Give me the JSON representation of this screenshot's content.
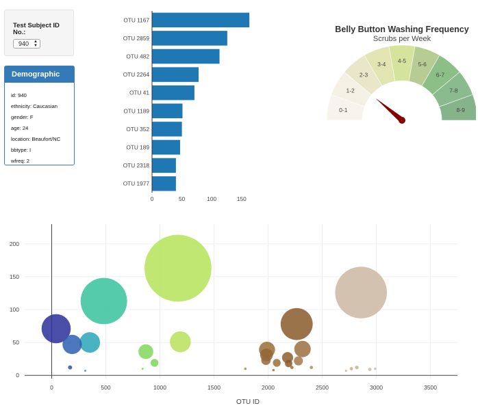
{
  "selector": {
    "label": "Test Subject ID No.:",
    "value": "940"
  },
  "demographics": {
    "title": "Demographic Info",
    "rows": [
      "id: 940",
      "ethnicity: Caucasian",
      "gender: F",
      "age: 24",
      "location: Beaufort/NC",
      "bbtype: I",
      "wfreq: 2"
    ]
  },
  "gauge": {
    "title": "Belly Button Washing Frequency",
    "subtitle": "Scrubs per Week",
    "segments": [
      "0-1",
      "1-2",
      "2-3",
      "3-4",
      "4-5",
      "5-6",
      "6-7",
      "7-8",
      "8-9"
    ],
    "colors": [
      "#f8f3ec",
      "#f4f1e4",
      "#e9e6c9",
      "#e2e4b1",
      "#d5e49d",
      "#b7cc92",
      "#8cbf88",
      "#8abb8f",
      "#85b48a"
    ],
    "value": 2,
    "needle_color": "#850000"
  },
  "chart_data": [
    {
      "type": "bar",
      "orientation": "horizontal",
      "categories": [
        "OTU 1167",
        "OTU 2859",
        "OTU 482",
        "OTU 2264",
        "OTU 41",
        "OTU 1189",
        "OTU 352",
        "OTU 189",
        "OTU 2318",
        "OTU 1977"
      ],
      "values": [
        163,
        126,
        113,
        78,
        71,
        51,
        50,
        47,
        40,
        40
      ],
      "xticks": [
        0,
        50,
        100,
        150
      ],
      "xlim": [
        0,
        172
      ],
      "color": "#1f77b4"
    },
    {
      "type": "scatter",
      "xlabel": "OTU ID",
      "xlim": [
        -250,
        3750
      ],
      "ylim": [
        -5,
        230
      ],
      "xticks": [
        0,
        500,
        1000,
        1500,
        2000,
        2500,
        3000,
        3500
      ],
      "yticks": [
        0,
        50,
        100,
        150,
        200
      ],
      "grid": true,
      "points": [
        {
          "x": 41,
          "y": 71,
          "size": 71,
          "color": "#2b2f9a"
        },
        {
          "x": 189,
          "y": 47,
          "size": 47,
          "color": "#2d5fb0"
        },
        {
          "x": 352,
          "y": 50,
          "size": 50,
          "color": "#2aa6b9"
        },
        {
          "x": 482,
          "y": 113,
          "size": 113,
          "color": "#37c29c"
        },
        {
          "x": 1167,
          "y": 163,
          "size": 163,
          "color": "#b6e35a"
        },
        {
          "x": 1189,
          "y": 51,
          "size": 51,
          "color": "#b9e05c"
        },
        {
          "x": 870,
          "y": 36,
          "size": 36,
          "color": "#7fd85a"
        },
        {
          "x": 950,
          "y": 19,
          "size": 19,
          "color": "#7cd55a"
        },
        {
          "x": 170,
          "y": 12,
          "size": 10,
          "color": "#2b56a8"
        },
        {
          "x": 310,
          "y": 7,
          "size": 5,
          "color": "#2a9fbf"
        },
        {
          "x": 840,
          "y": 10,
          "size": 5,
          "color": "#77d45a"
        },
        {
          "x": 1990,
          "y": 39,
          "size": 39,
          "color": "#9a6d36"
        },
        {
          "x": 1985,
          "y": 31,
          "size": 31,
          "color": "#8f6636"
        },
        {
          "x": 1980,
          "y": 23,
          "size": 23,
          "color": "#936838"
        },
        {
          "x": 2080,
          "y": 19,
          "size": 19,
          "color": "#96703d"
        },
        {
          "x": 2180,
          "y": 27,
          "size": 27,
          "color": "#8c6030"
        },
        {
          "x": 2190,
          "y": 18,
          "size": 18,
          "color": "#8a5c30"
        },
        {
          "x": 2264,
          "y": 78,
          "size": 78,
          "color": "#8a5a2c"
        },
        {
          "x": 2318,
          "y": 40,
          "size": 40,
          "color": "#9b6f40"
        },
        {
          "x": 2280,
          "y": 22,
          "size": 22,
          "color": "#a5784a"
        },
        {
          "x": 2220,
          "y": 12,
          "size": 8,
          "color": "#9a6e3c"
        },
        {
          "x": 2400,
          "y": 12,
          "size": 8,
          "color": "#b08d66"
        },
        {
          "x": 1790,
          "y": 10,
          "size": 6,
          "color": "#b08a30"
        },
        {
          "x": 2050,
          "y": 8,
          "size": 6,
          "color": "#a07438"
        },
        {
          "x": 2859,
          "y": 126,
          "size": 126,
          "color": "#cdb7a2"
        },
        {
          "x": 2820,
          "y": 12,
          "size": 9,
          "color": "#c9ad95"
        },
        {
          "x": 2770,
          "y": 10,
          "size": 8,
          "color": "#c8aa93"
        },
        {
          "x": 2940,
          "y": 9,
          "size": 8,
          "color": "#cdb6a6"
        },
        {
          "x": 2720,
          "y": 7,
          "size": 5,
          "color": "#c7ab92"
        },
        {
          "x": 2990,
          "y": 10,
          "size": 6,
          "color": "#cdbcae"
        }
      ]
    }
  ]
}
